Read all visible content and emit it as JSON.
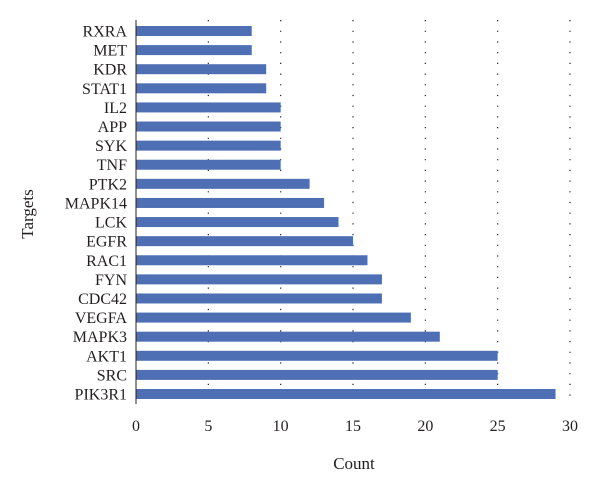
{
  "chart_data": {
    "type": "bar",
    "orientation": "horizontal",
    "title": "",
    "xlabel": "Count",
    "ylabel": "Targets",
    "categories": [
      "RXRA",
      "MET",
      "KDR",
      "STAT1",
      "IL2",
      "APP",
      "SYK",
      "TNF",
      "PTK2",
      "MAPK14",
      "LCK",
      "EGFR",
      "RAC1",
      "FYN",
      "CDC42",
      "VEGFA",
      "MAPK3",
      "AKT1",
      "SRC",
      "PIK3R1"
    ],
    "values": [
      8,
      8,
      9,
      9,
      10,
      10,
      10,
      10,
      12,
      13,
      14,
      15,
      16,
      17,
      17,
      19,
      21,
      25,
      25,
      29
    ],
    "xlim": [
      0,
      30
    ],
    "xticks": [
      0,
      5,
      10,
      15,
      20,
      25,
      30
    ],
    "xtick_labels": [
      "0",
      "5",
      "10",
      "15",
      "20",
      "25",
      "30"
    ],
    "grid": "vertical dotted",
    "legend": "none",
    "bar_color": "#4e6fb4",
    "grid_color": "#231f20",
    "axis_color": "#231f20"
  }
}
